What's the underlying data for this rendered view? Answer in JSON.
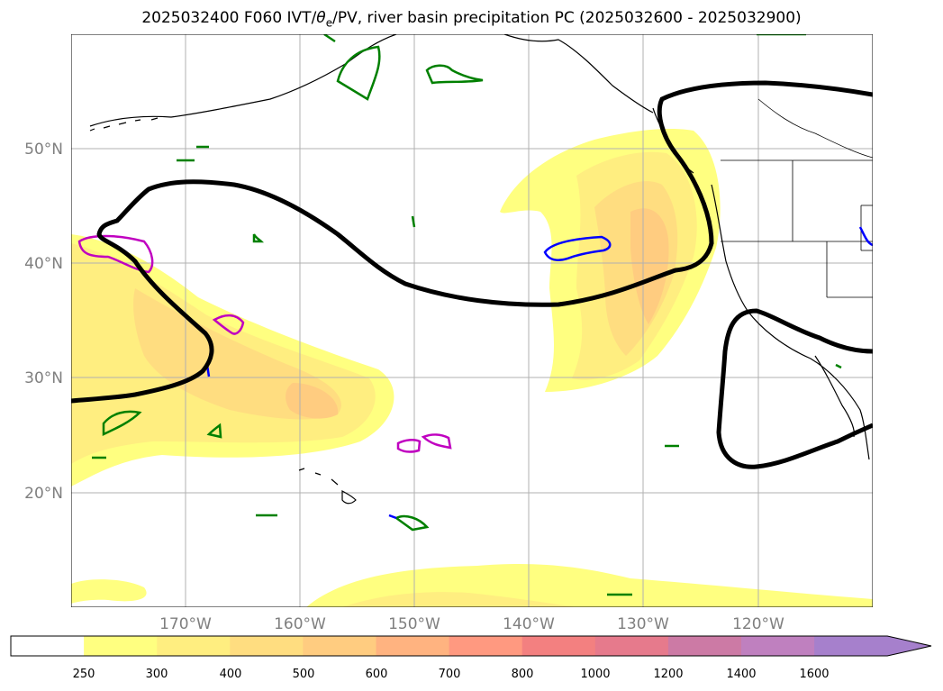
{
  "title": "2025032400 F060 IVT/θe/PV, river basin precipitation PC (2025032600 - 2025032900)",
  "title_parts": {
    "prefix": "2025032400 F060 IVT/",
    "theta": "θ",
    "theta_sub": "e",
    "suffix": "/PV, river basin precipitation PC (2025032600 - 2025032900)"
  },
  "map": {
    "lat_labels": [
      "50°N",
      "40°N",
      "30°N",
      "20°N"
    ],
    "lon_labels": [
      "170°W",
      "160°W",
      "150°W",
      "140°W",
      "130°W",
      "120°W"
    ],
    "extent": {
      "lon_min": -180,
      "lon_max": -110,
      "lat_min": 10,
      "lat_max": 60
    },
    "label_color": "#7f7f7f"
  },
  "colorbar": {
    "levels": [
      "250",
      "300",
      "400",
      "500",
      "600",
      "700",
      "800",
      "1000",
      "1200",
      "1400",
      "1600"
    ],
    "colors": [
      "#ffffff",
      "#ffff80",
      "#ffee80",
      "#ffdd80",
      "#ffcc80",
      "#ffb380",
      "#ff9980",
      "#f38080",
      "#e67a8c",
      "#cc7aa5",
      "#bf80bf",
      "#a680cc"
    ],
    "extend": "max"
  },
  "legend_colors": {
    "ivt_contour": "#000000",
    "pv_green": "#008000",
    "pv_magenta": "#c000c0",
    "pv_blue": "#0000ff",
    "coast": "#000000"
  }
}
